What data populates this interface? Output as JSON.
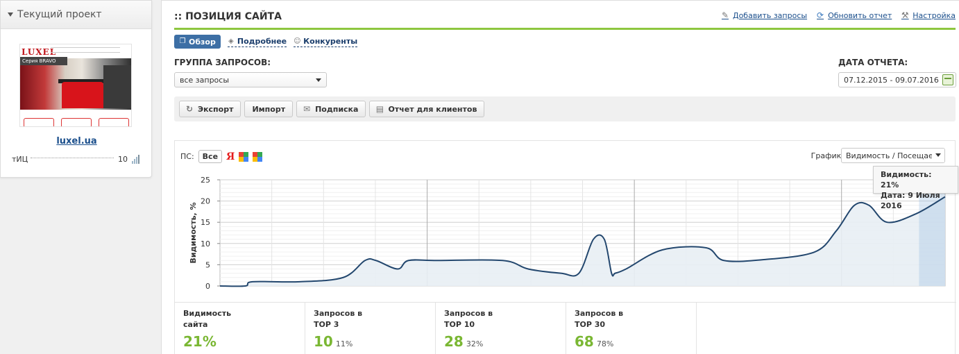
{
  "sidebar": {
    "title": "Текущий проект",
    "thumb": {
      "logo": "LUXEL",
      "series": "Серия BRAVO"
    },
    "site": "luxel.ua",
    "tic_label": "тИЦ",
    "tic_value": "10"
  },
  "header": {
    "title": ":: ПОЗИЦИЯ САЙТА",
    "actions": [
      "Добавить запросы",
      "Обновить отчет",
      "Настройка"
    ]
  },
  "tabs": [
    "Обзор",
    "Подробнее",
    "Конкуренты"
  ],
  "filters": {
    "group_label": "ГРУППА ЗАПРОСОВ:",
    "group_value": "все запросы",
    "date_label": "ДАТА ОТЧЕТА:",
    "date_value": "07.12.2015 - 09.07.2016"
  },
  "toolbar": [
    "Экспорт",
    "Импорт",
    "Подписка",
    "Отчет для клиентов"
  ],
  "chart_controls": {
    "ps_label": "ПС:",
    "ps_all": "Все",
    "yandex": "Я",
    "graph_label": "График:",
    "graph_value": "Видимость / Посещаемость"
  },
  "tooltip": {
    "line1": "Видимость: 21%",
    "line2": "Дата: 9 Июля 2016"
  },
  "chart_data": {
    "type": "area",
    "ylabel": "Видимость, %",
    "ylim": [
      0,
      25
    ],
    "yticks": [
      0,
      5,
      10,
      15,
      20,
      25
    ],
    "grid": true,
    "x": [
      0,
      0.035,
      0.045,
      0.11,
      0.17,
      0.2,
      0.215,
      0.245,
      0.26,
      0.3,
      0.39,
      0.425,
      0.47,
      0.495,
      0.515,
      0.53,
      0.54,
      0.545,
      0.56,
      0.61,
      0.67,
      0.695,
      0.75,
      0.82,
      0.85,
      0.875,
      0.895,
      0.92,
      0.96,
      1.0
    ],
    "values": [
      0,
      0,
      1,
      1,
      2,
      6,
      6,
      4,
      6,
      6,
      6,
      4,
      3,
      3,
      11,
      11,
      3,
      3,
      4,
      8.5,
      9,
      6,
      6.2,
      8,
      13,
      19,
      19,
      15,
      17,
      21
    ]
  },
  "stats": [
    {
      "title": "Видимость\nсайта",
      "value": "21%",
      "pct": ""
    },
    {
      "title": "Запросов в\nTOP 3",
      "value": "10",
      "pct": "11%"
    },
    {
      "title": "Запросов в\nTOP 10",
      "value": "28",
      "pct": "32%"
    },
    {
      "title": "Запросов в\nTOP 30",
      "value": "68",
      "pct": "78%"
    }
  ]
}
